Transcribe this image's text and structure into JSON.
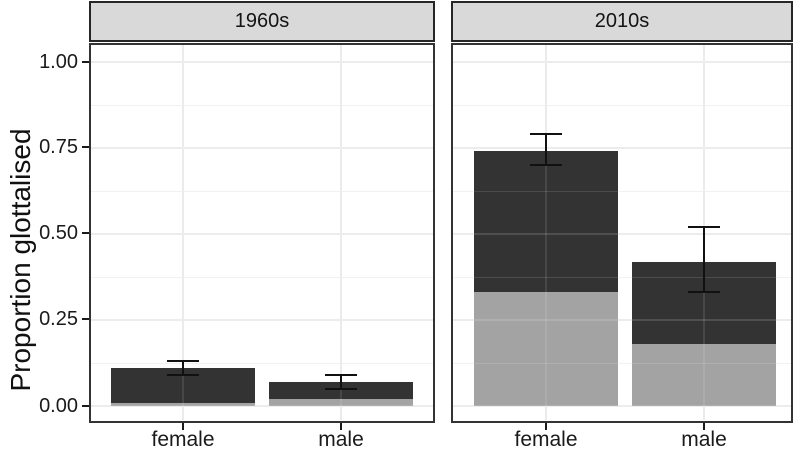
{
  "chart_data": {
    "type": "bar",
    "title": "",
    "ylabel": "Proportion glottalised",
    "xlabel": "",
    "ylim": [
      0,
      1.05
    ],
    "grid": true,
    "legend": "none",
    "ytick_values": [
      1.0,
      0.75,
      0.5,
      0.25,
      0.0
    ],
    "ytick_labels": [
      "1.00",
      "0.75",
      "0.50",
      "0.25",
      "0.00"
    ],
    "colors": {
      "bar_dark": "#333333",
      "bar_light": "#a3a3a3",
      "strip_background": "#d9d9d9",
      "panel_border": "#333333",
      "gridline_major": "#e9e9e9",
      "gridline_minor": "#f0f0f0",
      "errorbar": "#111111"
    },
    "facets": [
      {
        "label": "1960s",
        "categories": [
          "female",
          "male"
        ],
        "series": [
          {
            "name": "dark",
            "values": [
              0.11,
              0.07
            ]
          },
          {
            "name": "light",
            "values": [
              0.01,
              0.02
            ]
          }
        ],
        "error_bars": [
          {
            "category": "female",
            "center": 0.11,
            "low": 0.09,
            "high": 0.13
          },
          {
            "category": "male",
            "center": 0.07,
            "low": 0.05,
            "high": 0.09
          }
        ]
      },
      {
        "label": "2010s",
        "categories": [
          "female",
          "male"
        ],
        "series": [
          {
            "name": "dark",
            "values": [
              0.74,
              0.42
            ]
          },
          {
            "name": "light",
            "values": [
              0.33,
              0.18
            ]
          }
        ],
        "error_bars": [
          {
            "category": "female",
            "center": 0.74,
            "low": 0.7,
            "high": 0.79
          },
          {
            "category": "male",
            "center": 0.42,
            "low": 0.33,
            "high": 0.52
          }
        ]
      }
    ]
  }
}
